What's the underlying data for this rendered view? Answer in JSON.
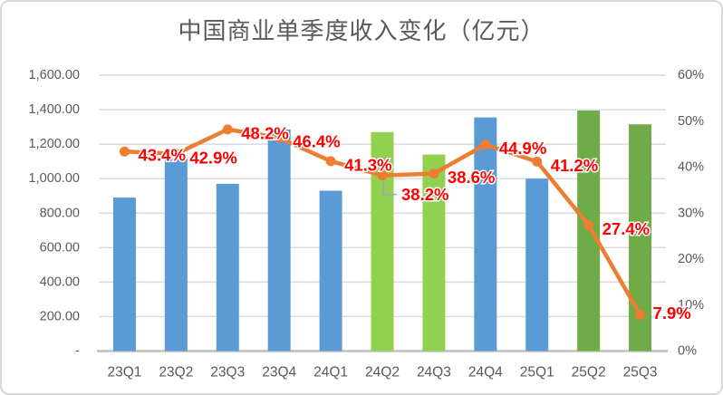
{
  "chart_data": {
    "type": "combo-bar-line",
    "title": "中国商业单季度收入变化（亿元）",
    "categories": [
      "23Q1",
      "23Q2",
      "23Q3",
      "23Q4",
      "24Q1",
      "24Q2",
      "24Q3",
      "24Q4",
      "25Q1",
      "25Q2",
      "25Q3"
    ],
    "series": [
      {
        "type": "bar",
        "axis": "left",
        "values": [
          890,
          1115,
          970,
          1285,
          930,
          1270,
          1140,
          1355,
          1000,
          1395,
          1315
        ],
        "bar_colors": [
          "#5B9BD5",
          "#5B9BD5",
          "#5B9BD5",
          "#5B9BD5",
          "#5B9BD5",
          "#92D050",
          "#92D050",
          "#5B9BD5",
          "#5B9BD5",
          "#6FAC47",
          "#6FAC47"
        ]
      },
      {
        "type": "line",
        "axis": "right",
        "values": [
          43.4,
          42.9,
          48.2,
          46.4,
          41.3,
          38.2,
          38.6,
          44.9,
          41.2,
          27.4,
          7.9
        ],
        "labels": [
          "43.4%",
          "42.9%",
          "48.2%",
          "46.4%",
          "41.3%",
          "38.2%",
          "38.6%",
          "44.9%",
          "41.2%",
          "27.4%",
          "7.9%"
        ],
        "color": "#ED7D31",
        "label_color": "#FF0000"
      }
    ],
    "left_axis": {
      "min": 0,
      "max": 1600,
      "step": 200,
      "tick_labels": [
        "1,600.00",
        "1,400.00",
        "1,200.00",
        "1,000.00",
        "800.00",
        "600.00",
        "400.00",
        "200.00",
        "-"
      ]
    },
    "right_axis": {
      "min": 0,
      "max": 60,
      "step": 10,
      "tick_labels": [
        "60%",
        "50%",
        "40%",
        "30%",
        "20%",
        "10%",
        "0%"
      ]
    },
    "grid": true,
    "legend": "none"
  },
  "colors": {
    "axis_text": "#595959",
    "title_text": "#595959",
    "gridline": "#D9D9D9",
    "axis_line": "#BFBFBF",
    "leader_line": "#A6A6A6",
    "label_halo": "#FFFFFF",
    "background": "#FFFFFF",
    "border": "#D9D9D9"
  }
}
